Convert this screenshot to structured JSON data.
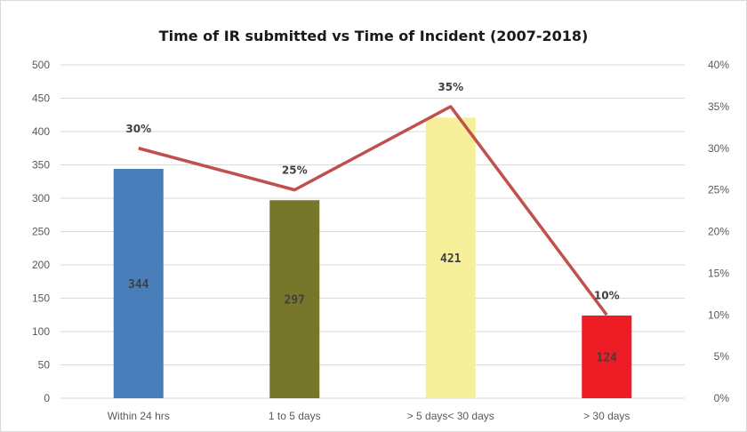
{
  "chart_data": {
    "type": "bar",
    "title": "Time of IR submitted vs Time of Incident (2007-2018)",
    "categories": [
      "Within 24 hrs",
      "1 to 5 days",
      "> 5 days< 30 days",
      "> 30 days"
    ],
    "series": [
      {
        "type": "bar",
        "axis": "left",
        "values": [
          344,
          297,
          421,
          124
        ],
        "data_labels": [
          "344",
          "297",
          "421",
          "124"
        ],
        "colors": [
          "#4a7ebb",
          "#77772b",
          "#f6f09a",
          "#ee1c24"
        ]
      },
      {
        "type": "line",
        "axis": "right",
        "values": [
          0.3,
          0.25,
          0.35,
          0.1
        ],
        "data_labels": [
          "30%",
          "25%",
          "35%",
          "10%"
        ],
        "color": "#c0504d"
      }
    ],
    "y_left": {
      "min": 0,
      "max": 500,
      "ticks": [
        "0",
        "50",
        "100",
        "150",
        "200",
        "250",
        "300",
        "350",
        "400",
        "450",
        "500"
      ]
    },
    "y_right": {
      "min": 0,
      "max": 0.4,
      "ticks": [
        "0%",
        "5%",
        "10%",
        "15%",
        "20%",
        "25%",
        "30%",
        "35%",
        "40%"
      ]
    },
    "grid": true,
    "legend": "none"
  }
}
